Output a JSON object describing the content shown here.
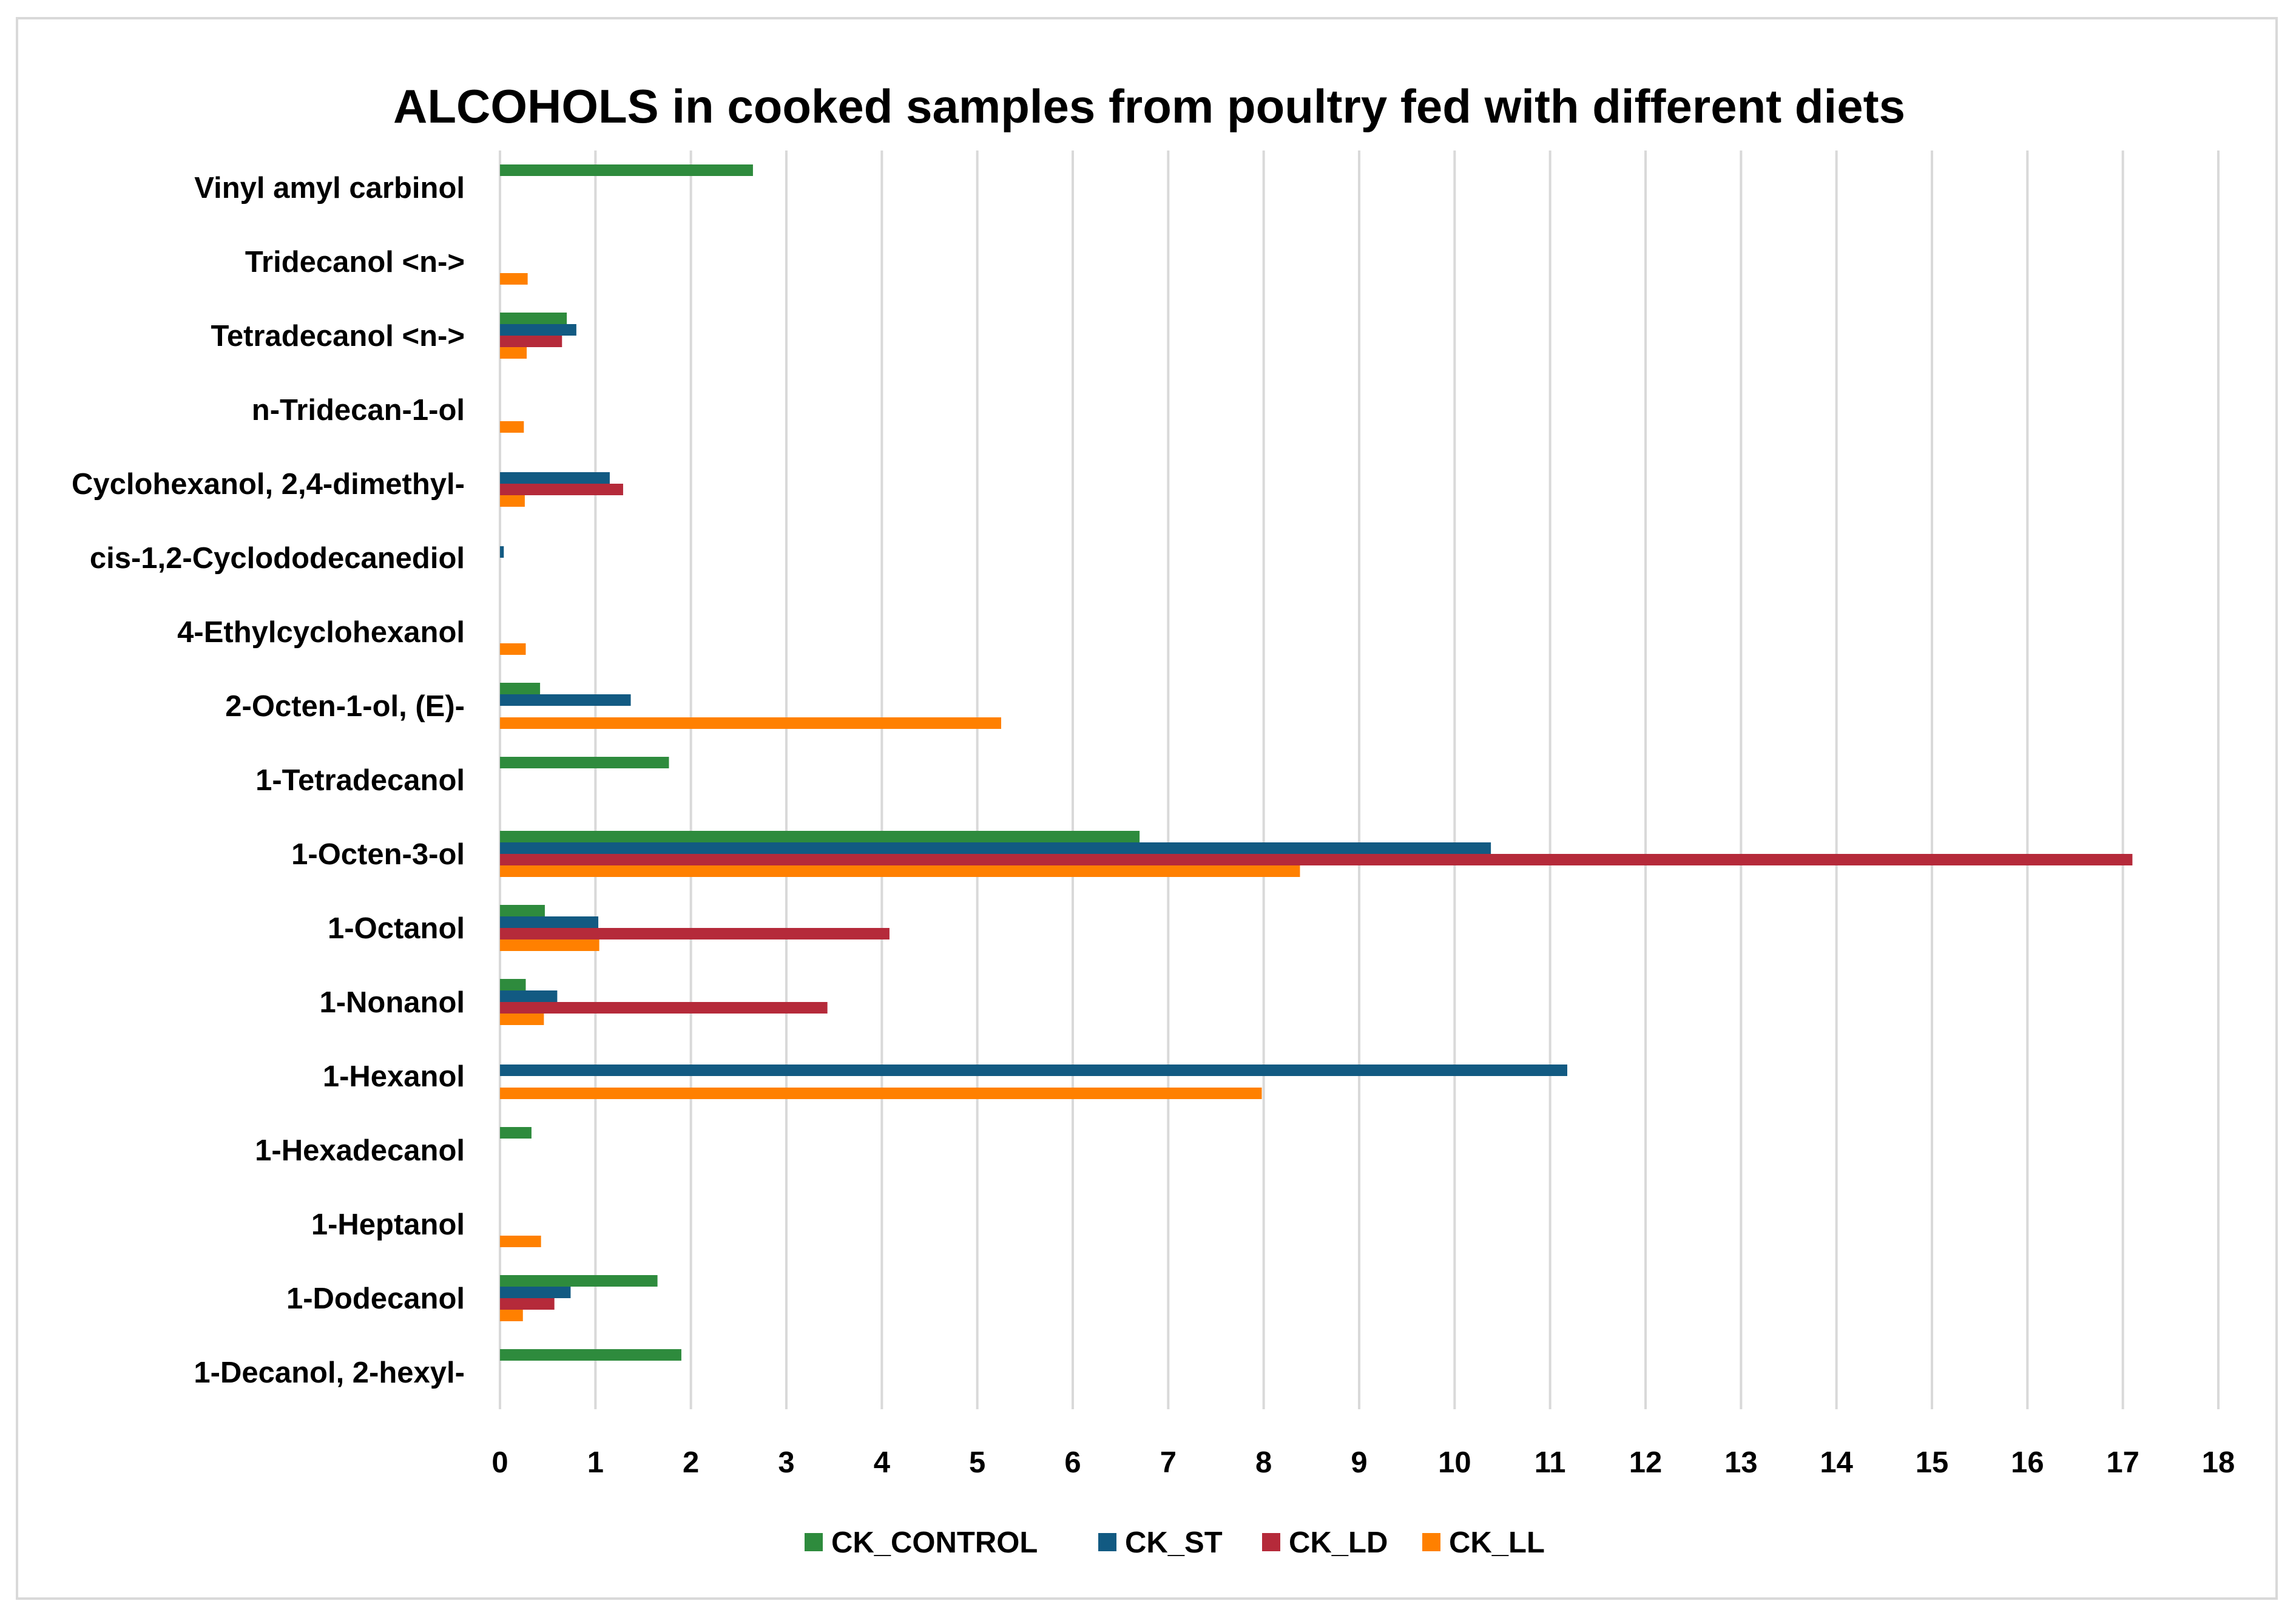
{
  "chart_data": {
    "type": "bar",
    "orientation": "horizontal",
    "title": "ALCOHOLS in cooked samples from poultry fed with different diets",
    "xlabel": "",
    "ylabel": "",
    "xlim": [
      0,
      18
    ],
    "x_ticks": [
      0,
      1,
      2,
      3,
      4,
      5,
      6,
      7,
      8,
      9,
      10,
      11,
      12,
      13,
      14,
      15,
      16,
      17,
      18
    ],
    "grid": true,
    "legend_position": "bottom",
    "categories": [
      "Vinyl amyl carbinol",
      "Tridecanol <n->",
      "Tetradecanol <n->",
      "n-Tridecan-1-ol",
      "Cyclohexanol, 2,4-dimethyl-",
      "cis-1,2-Cyclododecanediol",
      "4-Ethylcyclohexanol",
      "2-Octen-1-ol, (E)-",
      "1-Tetradecanol",
      "1-Octen-3-ol",
      "1-Octanol",
      "1-Nonanol",
      "1-Hexanol",
      "1-Hexadecanol",
      "1-Heptanol",
      "1-Dodecanol",
      "1-Decanol, 2-hexyl-"
    ],
    "series": [
      {
        "name": "CK_CONTROL",
        "color": "#2e8b3d",
        "values": [
          2.65,
          0,
          0.7,
          0,
          0,
          0,
          0,
          0.42,
          1.77,
          6.7,
          0.47,
          0.27,
          0,
          0.33,
          0,
          1.65,
          1.9
        ]
      },
      {
        "name": "CK_ST",
        "color": "#125a82",
        "values": [
          0,
          0,
          0.8,
          0,
          1.15,
          0.04,
          0,
          1.37,
          0,
          10.38,
          1.03,
          0.6,
          11.18,
          0,
          0,
          0.74,
          0
        ]
      },
      {
        "name": "CK_LD",
        "color": "#b52a3a",
        "values": [
          0,
          0,
          0.65,
          0,
          1.29,
          0,
          0,
          0,
          0,
          17.1,
          4.08,
          3.43,
          0,
          0,
          0,
          0.57,
          0
        ]
      },
      {
        "name": "CK_LL",
        "color": "#ff8000",
        "values": [
          0,
          0.29,
          0.28,
          0.25,
          0.26,
          0,
          0.27,
          5.25,
          0,
          8.38,
          1.04,
          0.46,
          7.98,
          0,
          0.43,
          0.24,
          0
        ]
      }
    ]
  }
}
